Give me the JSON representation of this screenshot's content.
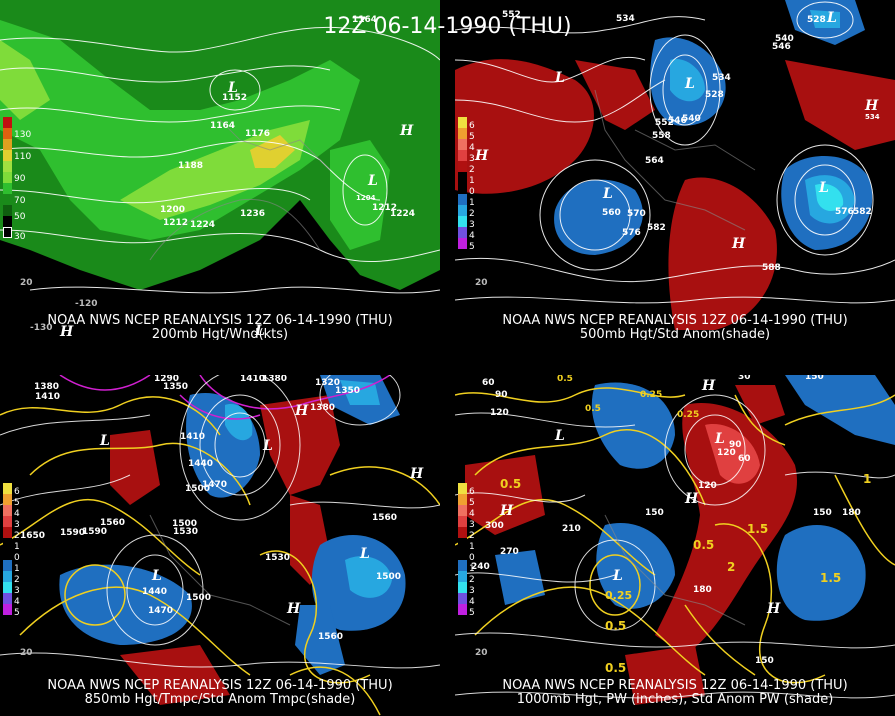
{
  "main_title": "12Z 06-14-1990 (THU)",
  "panels": {
    "top_left": {
      "caption_line1": "NOAA NWS NCEP REANALYSIS 12Z 06-14-1990 (THU)",
      "caption_line2": "200mb Hgt/Wnd(kts)",
      "scale": [
        "130",
        "110",
        "90",
        "70",
        "50",
        "30"
      ],
      "contour_labels": [
        "1164",
        "1152",
        "1164",
        "1176",
        "1188",
        "1200",
        "1212",
        "1224",
        "1236",
        "1212",
        "1224",
        "1204"
      ],
      "highs_lows": [
        "L",
        "H",
        "H",
        "L",
        "L"
      ],
      "lon_labels": [
        "-130",
        "-120"
      ],
      "lat_labels": [
        "20"
      ]
    },
    "top_right": {
      "caption_line1": "NOAA NWS NCEP REANALYSIS 12Z 06-14-1990 (THU)",
      "caption_line2": "500mb Hgt/Std Anom(shade)",
      "scale": [
        "6",
        "5",
        "4",
        "3",
        "2",
        "1",
        "0",
        "1",
        "2",
        "3",
        "4",
        "5"
      ],
      "contour_labels": [
        "552",
        "534",
        "528",
        "540",
        "546",
        "534",
        "528",
        "552",
        "546",
        "540",
        "558",
        "564",
        "560",
        "570",
        "576",
        "582",
        "576",
        "582",
        "588",
        "534"
      ],
      "highs_lows": [
        "L",
        "L",
        "L",
        "L",
        "L",
        "H",
        "H",
        "H"
      ],
      "lat_labels": [
        "20"
      ]
    },
    "bottom_left": {
      "caption_line1": "NOAA NWS NCEP REANALYSIS 12Z 06-14-1990 (THU)",
      "caption_line2": "850mb Hgt/Tmpc/Std Anom Tmpc(shade)",
      "scale": [
        "6",
        "5",
        "4",
        "3",
        "2",
        "1",
        "0",
        "1",
        "2",
        "3",
        "4",
        "5"
      ],
      "contour_labels": [
        "1380",
        "1410",
        "1290",
        "1350",
        "1410",
        "1380",
        "1320",
        "1350",
        "1380",
        "1410",
        "1440",
        "1470",
        "1500",
        "1560",
        "1590",
        "1530",
        "1500",
        "1440",
        "1470",
        "1500",
        "1530",
        "1560",
        "1560",
        "1500",
        "1650",
        "1590"
      ],
      "highs_lows": [
        "L",
        "L",
        "L",
        "H",
        "H",
        "H",
        "L"
      ],
      "lat_labels": [
        "20"
      ]
    },
    "bottom_right": {
      "caption_line1": "NOAA NWS NCEP REANALYSIS 12Z 06-14-1990 (THU)",
      "caption_line2": "1000mb Hgt, PW (inches), Std Anom PW (shade)",
      "scale": [
        "6",
        "5",
        "4",
        "3",
        "2",
        "1",
        "0",
        "1",
        "2",
        "3",
        "4",
        "5"
      ],
      "contour_labels": [
        "60",
        "90",
        "120",
        "30",
        "150",
        "0.5",
        "0.5",
        "0.25",
        "0.25",
        "90",
        "60",
        "120",
        "150",
        "180",
        "210",
        "270",
        "300",
        "240",
        "180",
        "150",
        "120",
        "0.5",
        "0.25",
        "1.5",
        "2",
        "0.5",
        "0.5",
        "1",
        "1.5",
        "0.5",
        "150"
      ],
      "highs_lows": [
        "H",
        "H",
        "L",
        "L",
        "L",
        "H",
        "H"
      ],
      "lat_labels": [
        "20"
      ]
    }
  },
  "colors": {
    "background": "#000000",
    "wind_dark_green": "#1a8a1a",
    "wind_green": "#2fbf2f",
    "wind_light_green": "#7fdc3a",
    "wind_yellow": "#e0d030",
    "wind_orange": "#e0901c",
    "anom_pos": "#b01010",
    "anom_pos2": "#e04040",
    "anom_neg": "#1f6fc0",
    "anom_neg2": "#27a7e0",
    "anom_neg3": "#33e0ee",
    "temp_contour": "#f0d020",
    "neg_temp_contour": "#d020d0",
    "height_contour": "#ffffff"
  }
}
